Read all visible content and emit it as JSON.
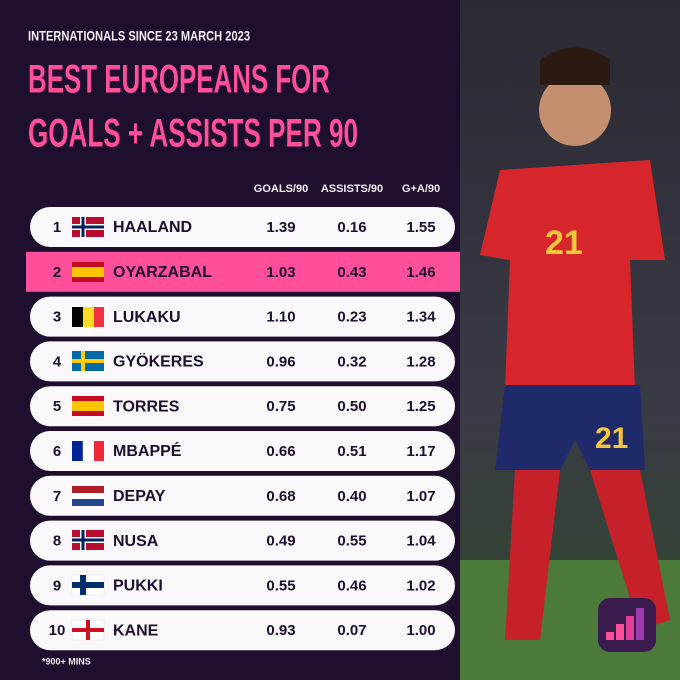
{
  "header": {
    "subtitle": "INTERNATIONALS SINCE 23 MARCH 2023",
    "title": [
      "BEST EUROPEANS FOR",
      "GOALS + ASSISTS PER 90"
    ]
  },
  "table": {
    "columns": [
      "GOALS/90",
      "ASSISTS/90",
      "G+A/90"
    ],
    "highlight_row": 1,
    "rows": [
      [
        "1",
        "HAALAND",
        "1.39",
        "0.16",
        "1.55"
      ],
      [
        "2",
        "OYARZABAL",
        "1.03",
        "0.43",
        "1.46"
      ],
      [
        "3",
        "LUKAKU",
        "1.10",
        "0.23",
        "1.34"
      ],
      [
        "4",
        "GYÖKERES",
        "0.96",
        "0.32",
        "1.28"
      ],
      [
        "5",
        "TORRES",
        "0.75",
        "0.50",
        "1.25"
      ],
      [
        "6",
        "MBAPPÉ",
        "0.66",
        "0.51",
        "1.17"
      ],
      [
        "7",
        "DEPAY",
        "0.68",
        "0.40",
        "1.07"
      ],
      [
        "8",
        "NUSA",
        "0.49",
        "0.55",
        "1.04"
      ],
      [
        "9",
        "PUKKI",
        "0.55",
        "0.46",
        "1.02"
      ],
      [
        "10",
        "KANE",
        "0.93",
        "0.07",
        "1.00"
      ]
    ]
  },
  "footnote": "*900+ MINS"
}
